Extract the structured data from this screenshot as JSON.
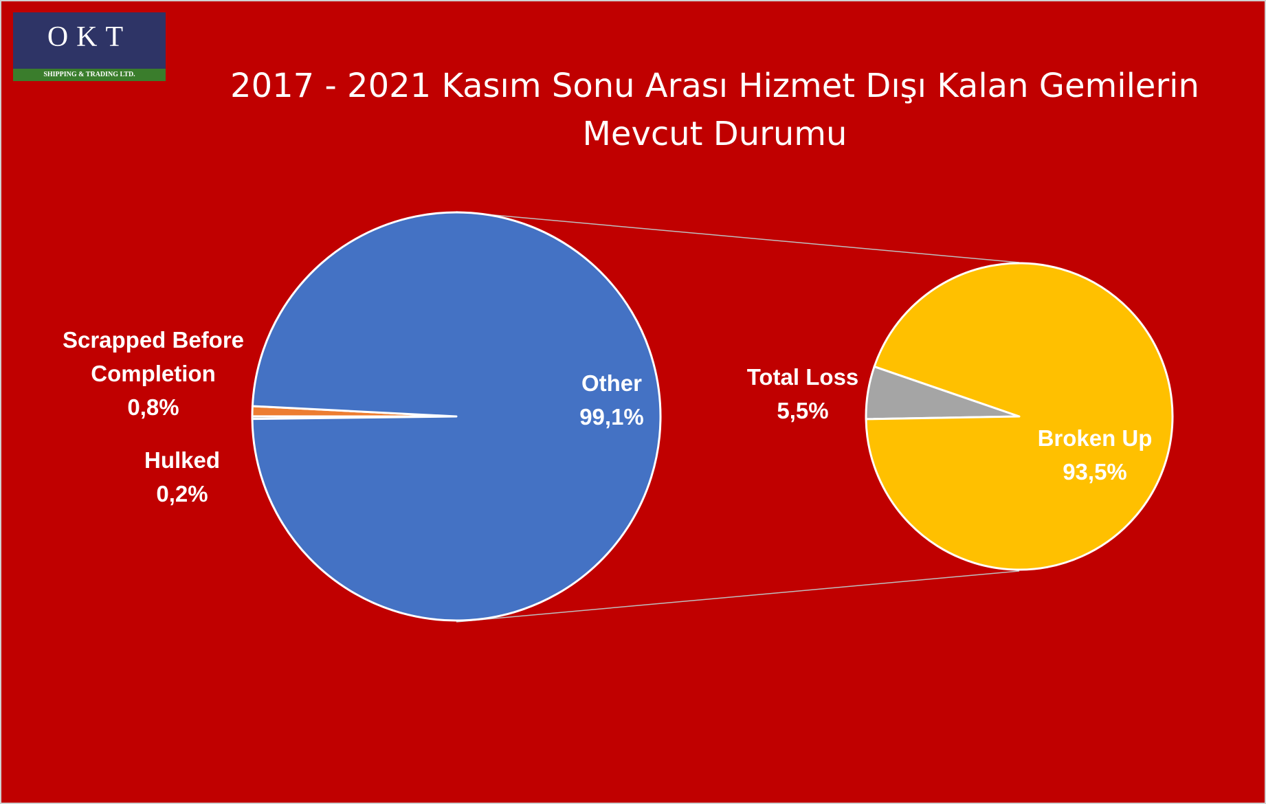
{
  "logo": {
    "mark": "OKT",
    "subtitle": "SHIPPING & TRADING LTD."
  },
  "chart_data": [
    {
      "type": "pie",
      "title": "2017 - 2021 Kasım Sonu Arası Hizmet Dışı Kalan Gemilerin Mevcut Durumu",
      "categories": [
        "Hulked",
        "Scrapped Before Completion",
        "Other"
      ],
      "values": [
        0.2,
        0.8,
        99.1
      ],
      "value_labels": [
        "0,2%",
        "0,8%",
        "99,1%"
      ],
      "colors": [
        "#a5a5a5",
        "#ed7d31",
        "#4472c4"
      ]
    },
    {
      "type": "pie",
      "categories": [
        "Total Loss",
        "Broken Up"
      ],
      "values": [
        5.5,
        93.5
      ],
      "value_labels": [
        "5,5%",
        "93,5%"
      ],
      "colors": [
        "#a5a5a5",
        "#ffc000"
      ]
    }
  ]
}
